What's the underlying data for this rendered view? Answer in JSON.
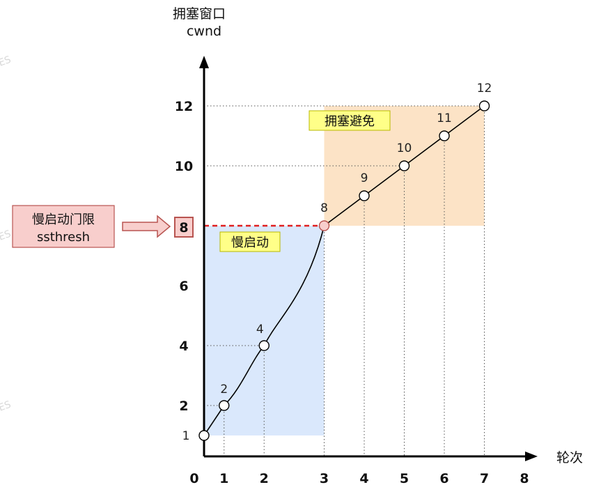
{
  "y_axis": {
    "title_line1": "拥塞窗口",
    "title_line2": "cwnd"
  },
  "x_axis": {
    "title": "轮次"
  },
  "chart_data": {
    "type": "line",
    "x": [
      0,
      0.5,
      1.5,
      3,
      4,
      5,
      6,
      7
    ],
    "y": [
      1,
      2,
      4,
      8,
      9,
      10,
      11,
      12
    ],
    "point_labels": [
      "1",
      "2",
      "4",
      "8",
      "9",
      "10",
      "11",
      "12"
    ],
    "x_ticks": [
      "0",
      "1",
      "2",
      "3",
      "4",
      "5",
      "6",
      "7",
      "8"
    ],
    "y_ticks": [
      "2",
      "4",
      "6",
      "8",
      "10",
      "12"
    ],
    "xlabel": "轮次",
    "ylabel": "拥塞窗口 cwnd",
    "ssthresh": 8
  },
  "regions": {
    "slow_start": {
      "label": "慢启动",
      "color": "#dae8fc"
    },
    "congestion_avoidance": {
      "label": "拥塞避免",
      "color": "#fce3c6"
    }
  },
  "ssthresh_box": {
    "line1": "慢启动门限",
    "line2": "ssthresh",
    "value": "8"
  },
  "colors": {
    "threshold_line": "#e02020",
    "label_bg": "#ffff88",
    "threshold_box": "#f8cecc"
  }
}
